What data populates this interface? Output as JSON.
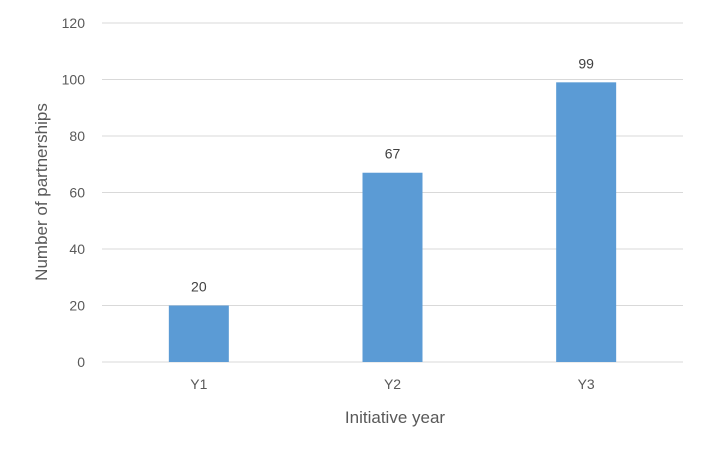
{
  "chart_data": {
    "type": "bar",
    "title": "",
    "categories": [
      "Y1",
      "Y2",
      "Y3"
    ],
    "values": [
      20,
      67,
      99
    ],
    "data_labels": [
      "20",
      "67",
      "99"
    ],
    "xlabel": "Initiative year",
    "ylabel": "Number of partnerships",
    "ylim": [
      0,
      120
    ],
    "yticks": [
      0,
      20,
      40,
      60,
      80,
      100,
      120
    ],
    "grid": true,
    "legend": "none",
    "colors": {
      "bar": "#5b9bd5",
      "grid": "#d9d9d9",
      "tick_text": "#595959",
      "label_text": "#404040"
    }
  }
}
